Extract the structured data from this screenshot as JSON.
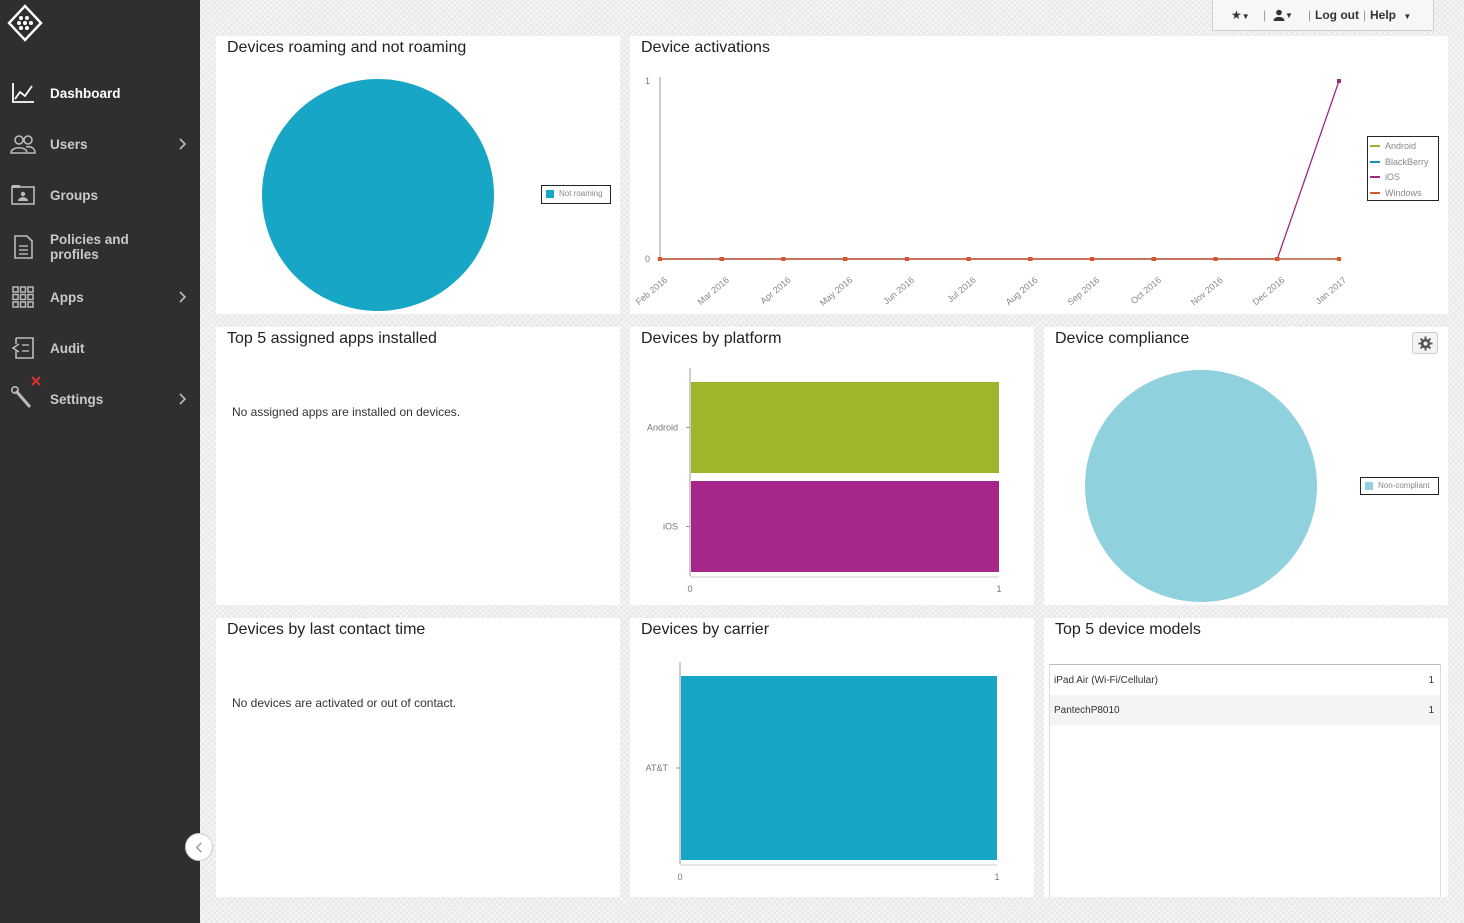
{
  "nav": {
    "items": [
      {
        "label": "Dashboard"
      },
      {
        "label": "Users"
      },
      {
        "label": "Groups"
      },
      {
        "label": "Policies and profiles"
      },
      {
        "label": "Apps"
      },
      {
        "label": "Audit"
      },
      {
        "label": "Settings"
      }
    ]
  },
  "topbar": {
    "logout": "Log out",
    "help": "Help"
  },
  "cards": {
    "roaming": {
      "title": "Devices roaming and not roaming",
      "legend": "Not roaming",
      "color": "#17a6c6"
    },
    "activations": {
      "title": "Device activations"
    },
    "top_apps": {
      "title": "Top 5 assigned apps installed",
      "message": "No assigned apps are installed on devices."
    },
    "platform": {
      "title": "Devices by platform"
    },
    "compliance": {
      "title": "Device compliance",
      "legend": "Non-compliant",
      "color": "#8fd1dd"
    },
    "last_contact": {
      "title": "Devices by last contact time",
      "message": "No devices are activated or out of contact."
    },
    "carrier": {
      "title": "Devices by carrier"
    },
    "models": {
      "title": "Top 5 device models",
      "rows": [
        {
          "name": "iPad Air (Wi-Fi/Cellular)",
          "count": "1"
        },
        {
          "name": "PantechP8010",
          "count": "1"
        }
      ]
    }
  },
  "chart_data": [
    {
      "id": "roaming",
      "type": "pie",
      "title": "Devices roaming and not roaming",
      "slices": [
        {
          "label": "Not roaming",
          "value": 1,
          "color": "#17a6c6"
        }
      ]
    },
    {
      "id": "activations",
      "type": "line",
      "title": "Device activations",
      "x": [
        "Feb 2016",
        "Mar 2016",
        "Apr 2016",
        "May 2016",
        "Jun 2016",
        "Jul 2016",
        "Aug 2016",
        "Sep 2016",
        "Oct 2016",
        "Nov 2016",
        "Dec 2016",
        "Jan 2017"
      ],
      "ylim": [
        0,
        1
      ],
      "yticks": [
        "0",
        "1"
      ],
      "series": [
        {
          "name": "Android",
          "color": "#97b42b",
          "values": [
            0,
            0,
            0,
            0,
            0,
            0,
            0,
            0,
            0,
            0,
            0,
            0
          ]
        },
        {
          "name": "BlackBerry",
          "color": "#1a8ec2",
          "values": [
            0,
            0,
            0,
            0,
            0,
            0,
            0,
            0,
            0,
            0,
            0,
            0
          ]
        },
        {
          "name": "iOS",
          "color": "#9c2a7e",
          "values": [
            0,
            0,
            0,
            0,
            0,
            0,
            0,
            0,
            0,
            0,
            0,
            1
          ]
        },
        {
          "name": "Windows",
          "color": "#d9552b",
          "values": [
            0,
            0,
            0,
            0,
            0,
            0,
            0,
            0,
            0,
            0,
            0,
            0
          ]
        }
      ]
    },
    {
      "id": "platform",
      "type": "bar",
      "title": "Devices by platform",
      "orientation": "horizontal",
      "categories": [
        "Android",
        "iOS"
      ],
      "values": [
        1,
        1
      ],
      "colors": [
        "#a0b52c",
        "#a6268a"
      ],
      "xlim": [
        0,
        1
      ],
      "xticks": [
        "0",
        "1"
      ]
    },
    {
      "id": "compliance",
      "type": "pie",
      "title": "Device compliance",
      "slices": [
        {
          "label": "Non-compliant",
          "value": 1,
          "color": "#8fd1dd"
        }
      ]
    },
    {
      "id": "carrier",
      "type": "bar",
      "title": "Devices by carrier",
      "orientation": "horizontal",
      "categories": [
        "AT&T"
      ],
      "values": [
        1
      ],
      "colors": [
        "#17a6c6"
      ],
      "xlim": [
        0,
        1
      ],
      "xticks": [
        "0",
        "1"
      ]
    }
  ]
}
